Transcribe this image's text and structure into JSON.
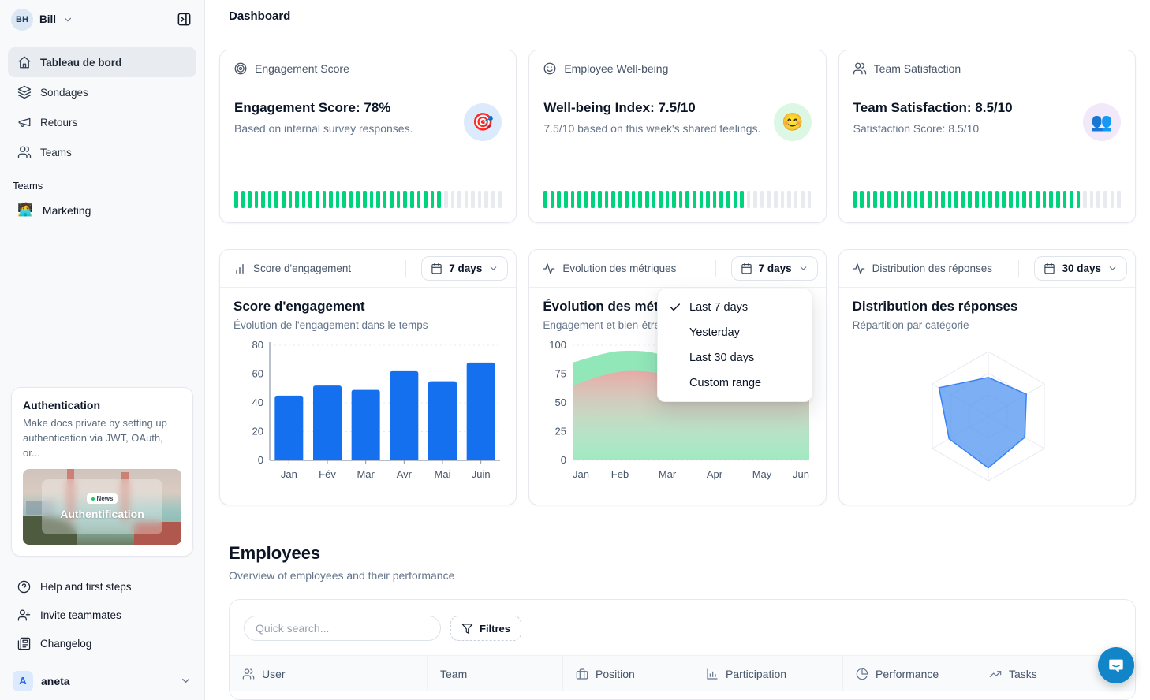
{
  "sidebar": {
    "workspace": {
      "initials": "BH",
      "name": "Bill"
    },
    "nav": [
      {
        "label": "Tableau de bord",
        "icon": "home-icon",
        "active": true
      },
      {
        "label": "Sondages",
        "icon": "layers-icon"
      },
      {
        "label": "Retours",
        "icon": "megaphone-icon"
      },
      {
        "label": "Teams",
        "icon": "users-icon"
      }
    ],
    "teams_section": {
      "label": "Teams",
      "items": [
        {
          "emoji": "🧑‍💻",
          "label": "Marketing"
        }
      ]
    },
    "promo_card": {
      "title": "Authentication",
      "description": "Make docs private by setting up authentication via JWT, OAuth, or...",
      "news_badge": "News",
      "image_title": "Authentification"
    },
    "footer_nav": [
      {
        "label": "Help and first steps",
        "icon": "help-circle-icon"
      },
      {
        "label": "Invite teammates",
        "icon": "user-plus-icon"
      },
      {
        "label": "Changelog",
        "icon": "newspaper-icon"
      }
    ],
    "account": {
      "initial": "A",
      "name": "aneta"
    }
  },
  "header": {
    "title": "Dashboard"
  },
  "metric_cards": [
    {
      "header": "Engagement Score",
      "icon": "target-icon",
      "title": "Engagement Score: 78%",
      "subtitle": "Based on internal survey responses.",
      "emoji": "🎯",
      "badge_bg": "#dbeafd",
      "progress_pct": 78
    },
    {
      "header": "Employee Well-being",
      "icon": "smiley-icon",
      "title": "Well-being Index: 7.5/10",
      "subtitle": "7.5/10 based on this week's shared feelings.",
      "emoji": "😊",
      "badge_bg": "#dcf7e3",
      "progress_pct": 75
    },
    {
      "header": "Team Satisfaction",
      "icon": "users-icon",
      "title": "Team Satisfaction: 8.5/10",
      "subtitle": "Satisfaction Score: 8.5/10",
      "emoji": "👥",
      "badge_bg": "#f1e8fa",
      "progress_pct": 85
    }
  ],
  "chart_cards": [
    {
      "header_label": "Score d'engagement",
      "icon": "bar-chart-icon",
      "range": "7 days",
      "title": "Score d'engagement",
      "subtitle": "Évolution de l'engagement dans le temps"
    },
    {
      "header_label": "Évolution des métriques",
      "icon": "activity-icon",
      "range": "7 days",
      "title": "Évolution des métriques",
      "subtitle": "Engagement et bien-être"
    },
    {
      "header_label": "Distribution des réponses",
      "icon": "activity-icon",
      "range": "30 days",
      "title": "Distribution des réponses",
      "subtitle": "Répartition par catégorie"
    }
  ],
  "dropdown_menu": {
    "items": [
      {
        "label": "Last 7 days",
        "checked": true
      },
      {
        "label": "Yesterday",
        "checked": false
      },
      {
        "label": "Last 30 days",
        "checked": false
      },
      {
        "label": "Custom range",
        "checked": false
      }
    ]
  },
  "employees": {
    "title": "Employees",
    "subtitle": "Overview of employees and their performance",
    "search_placeholder": "Quick search...",
    "filter_label": "Filtres",
    "columns": [
      {
        "label": "User",
        "icon": "users-icon"
      },
      {
        "label": "Team",
        "icon": null
      },
      {
        "label": "Position",
        "icon": "briefcase-icon"
      },
      {
        "label": "Participation",
        "icon": "bar-chart-axis-icon"
      },
      {
        "label": "Performance",
        "icon": "pie-chart-icon"
      },
      {
        "label": "Tasks",
        "icon": "trend-up-icon"
      }
    ]
  },
  "colors": {
    "progress_green": "#00d37d",
    "progress_empty": "#e7eaee",
    "bar_blue": "#1570ef",
    "area_green": "#8be6b4",
    "area_pink": "#eda6a6",
    "radar_fill": "#5b9bf0",
    "radar_stroke": "#3b82f6",
    "chat_fab_blue": "#1285c9"
  },
  "chart_data": [
    {
      "type": "bar",
      "title": "Score d'engagement",
      "subtitle": "Évolution de l'engagement dans le temps",
      "categories": [
        "Jan",
        "Fév",
        "Mar",
        "Avr",
        "Mai",
        "Juin"
      ],
      "values": [
        45,
        52,
        49,
        62,
        55,
        68
      ],
      "ylim": [
        0,
        80
      ],
      "yticks": [
        0,
        20,
        40,
        60,
        80
      ],
      "grid": "dashed",
      "legend": "none",
      "bar_color": "#1570ef"
    },
    {
      "type": "area",
      "title": "Évolution des métriques",
      "subtitle": "Engagement et bien-être",
      "x": [
        "Jan",
        "Feb",
        "Mar",
        "Apr",
        "May",
        "Jun"
      ],
      "series": [
        {
          "name": "green-area",
          "color": "#8be6b4",
          "values": [
            85,
            95,
            90,
            63,
            72,
            68
          ]
        },
        {
          "name": "pink-area",
          "color": "#eda6a6",
          "values": [
            65,
            77,
            74,
            58,
            66,
            63
          ]
        }
      ],
      "ylim": [
        0,
        100
      ],
      "yticks": [
        0,
        25,
        50,
        75,
        100
      ],
      "grid": "dashed",
      "legend": "none"
    },
    {
      "type": "radar",
      "title": "Distribution des réponses",
      "subtitle": "Répartition par catégorie",
      "axes": 6,
      "axis_labels": [],
      "values": [
        60,
        68,
        65,
        80,
        70,
        88
      ],
      "max": 100,
      "rings": 3,
      "legend": "none"
    }
  ]
}
